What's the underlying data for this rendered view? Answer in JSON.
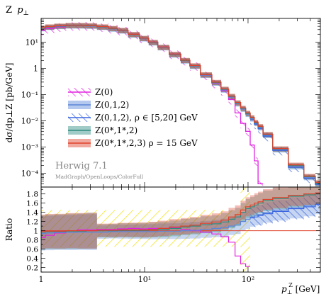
{
  "chart_data": [
    {
      "type": "line",
      "title": "Z p⊥",
      "title_main": "Z",
      "title_var": "p",
      "title_sub": "⊥",
      "ylabel": "dσ/dp⊥Z [pb/GeV]",
      "x_scale": "log",
      "y_scale": "log",
      "xlim": [
        1,
        500
      ],
      "ylim": [
        3e-05,
        80
      ],
      "grid": false,
      "legend_position": "middle-left",
      "y_tick_labels": [
        "10⁻⁴",
        "10⁻³",
        "10⁻²",
        "10⁻¹",
        "1",
        "10¹"
      ],
      "y_tick_values": [
        0.0001,
        0.001,
        0.01,
        0.1,
        1,
        10
      ],
      "annotation": "Herwig 7.1",
      "annotation_sub": "MadGraph/OpenLoops/ColorFull",
      "x": [
        1,
        1.2,
        1.5,
        2,
        2.5,
        3,
        4,
        5,
        6,
        8,
        10,
        12,
        15,
        20,
        25,
        30,
        40,
        50,
        60,
        70,
        80,
        90,
        100,
        110,
        120,
        130,
        150,
        200,
        300,
        400,
        500
      ],
      "series": [
        {
          "name": "Z(0)",
          "color": "#e020e0",
          "style": "hatched",
          "values": [
            28,
            33,
            38,
            42,
            43,
            42,
            38,
            33,
            28,
            20,
            14,
            10,
            6.5,
            3.5,
            2.0,
            1.25,
            0.55,
            0.27,
            0.14,
            0.065,
            0.02,
            0.008,
            0.004,
            0.0012,
            0.0003,
            4e-05,
            null,
            null,
            null,
            null,
            null
          ]
        },
        {
          "name": "Z(0,1,2)",
          "color": "#5b86d8",
          "style": "band",
          "values": [
            33,
            37,
            40,
            42,
            42,
            41,
            37,
            32,
            27,
            19,
            13.5,
            9.5,
            6.2,
            3.3,
            1.95,
            1.2,
            0.55,
            0.28,
            0.15,
            0.08,
            0.045,
            0.028,
            0.018,
            0.012,
            0.008,
            0.0055,
            0.0028,
            0.0008,
            0.00018,
            7e-05,
            4e-05
          ]
        },
        {
          "name": "Z(0,1,2), ρ ∈ [5,20] GeV",
          "color": "#3b66e0",
          "style": "hatched",
          "values": [
            null,
            null,
            null,
            null,
            null,
            null,
            null,
            null,
            null,
            null,
            null,
            null,
            null,
            null,
            null,
            null,
            null,
            null,
            null,
            null,
            null,
            null,
            null,
            0.011,
            0.0075,
            0.005,
            0.0026,
            0.00075,
            0.00017,
            6.5e-05,
            3.8e-05
          ]
        },
        {
          "name": "Z(0*,1*,2)",
          "color": "#2e8b80",
          "style": "band",
          "values": [
            34,
            38,
            41,
            43,
            43,
            42,
            38,
            33,
            28,
            19.5,
            14,
            9.8,
            6.4,
            3.4,
            2.0,
            1.25,
            0.57,
            0.29,
            0.16,
            0.085,
            0.048,
            0.03,
            0.019,
            0.013,
            0.0085,
            0.006,
            0.003,
            0.00085,
            0.0002,
            7.5e-05,
            4.2e-05
          ]
        },
        {
          "name": "Z(0*,1*,2,3) ρ = 15 GeV",
          "color": "#e0402a",
          "style": "band",
          "values": [
            35,
            39,
            42,
            44,
            44,
            43,
            39,
            34,
            28.5,
            20,
            14.2,
            10,
            6.5,
            3.5,
            2.05,
            1.28,
            0.58,
            0.3,
            0.165,
            0.088,
            0.05,
            0.031,
            0.02,
            0.0135,
            0.009,
            0.0062,
            0.0031,
            0.00088,
            0.00021,
            7.8e-05,
            4.5e-05
          ]
        }
      ]
    },
    {
      "type": "line",
      "ylabel": "Ratio",
      "xlabel": "p⊥Z [GeV]",
      "xlabel_var": "p",
      "xlabel_sub": "⊥",
      "xlabel_sup": "Z",
      "xlabel_unit": " [GeV]",
      "x_scale": "log",
      "xlim": [
        1,
        500
      ],
      "ylim": [
        0.1,
        1.95
      ],
      "grid": false,
      "x_tick_labels": [
        "1",
        "10¹",
        "10²"
      ],
      "x_tick_values": [
        1,
        10,
        100
      ],
      "y_tick_labels": [
        "0.2",
        "0.4",
        "0.6",
        "0.8",
        "1",
        "1.2",
        "1.4",
        "1.6",
        "1.8"
      ],
      "y_tick_values": [
        0.2,
        0.4,
        0.6,
        0.8,
        1,
        1.2,
        1.4,
        1.6,
        1.8
      ],
      "x": [
        1,
        1.2,
        1.5,
        2,
        2.5,
        3,
        4,
        5,
        6,
        8,
        10,
        12,
        15,
        20,
        25,
        30,
        40,
        50,
        60,
        70,
        80,
        90,
        100,
        110,
        120,
        130,
        150,
        200,
        300,
        400,
        500
      ],
      "series": [
        {
          "name": "Z(0)",
          "values": [
            0.85,
            0.9,
            0.95,
            1.0,
            1.02,
            1.02,
            1.03,
            1.03,
            1.04,
            1.05,
            1.04,
            1.05,
            1.05,
            1.06,
            1.03,
            1.0,
            0.97,
            0.93,
            0.87,
            0.75,
            0.45,
            0.28,
            0.22,
            null,
            null,
            null,
            null,
            null,
            null,
            null,
            null
          ]
        },
        {
          "name": "Z(0,1,2)",
          "values": [
            0.94,
            0.95,
            0.96,
            0.96,
            0.97,
            0.97,
            0.97,
            0.98,
            0.98,
            0.98,
            0.98,
            0.98,
            0.99,
            0.99,
            1.0,
            1.01,
            1.03,
            1.05,
            1.07,
            1.1,
            1.13,
            1.2,
            1.25,
            1.3,
            1.33,
            1.35,
            1.4,
            1.45,
            1.5,
            1.55,
            1.6
          ]
        },
        {
          "name": "Z(0,1,2), ρ ∈ [5,20] GeV",
          "values": [
            null,
            null,
            null,
            null,
            null,
            null,
            null,
            null,
            null,
            null,
            null,
            null,
            null,
            null,
            null,
            null,
            null,
            null,
            null,
            null,
            null,
            null,
            null,
            1.28,
            1.3,
            1.33,
            1.37,
            1.42,
            1.48,
            1.52,
            1.57
          ]
        },
        {
          "name": "Z(0*,1*,2)",
          "values": [
            0.97,
            0.98,
            0.98,
            0.99,
            0.99,
            1.0,
            1.0,
            1.0,
            1.01,
            1.01,
            1.01,
            1.02,
            1.03,
            1.05,
            1.08,
            1.1,
            1.13,
            1.15,
            1.19,
            1.25,
            1.3,
            1.4,
            1.48,
            1.52,
            1.56,
            1.6,
            1.65,
            1.7,
            1.75,
            1.78,
            1.8
          ]
        },
        {
          "name": "Z(0*,1*,2,3) ρ = 15 GeV",
          "values": [
            0.98,
            0.99,
            0.99,
            1.0,
            1.0,
            1.0,
            1.01,
            1.01,
            1.02,
            1.02,
            1.02,
            1.03,
            1.05,
            1.08,
            1.1,
            1.12,
            1.16,
            1.19,
            1.23,
            1.3,
            1.35,
            1.45,
            1.52,
            1.56,
            1.6,
            1.63,
            1.68,
            1.72,
            1.77,
            1.8,
            1.82
          ]
        }
      ]
    }
  ]
}
